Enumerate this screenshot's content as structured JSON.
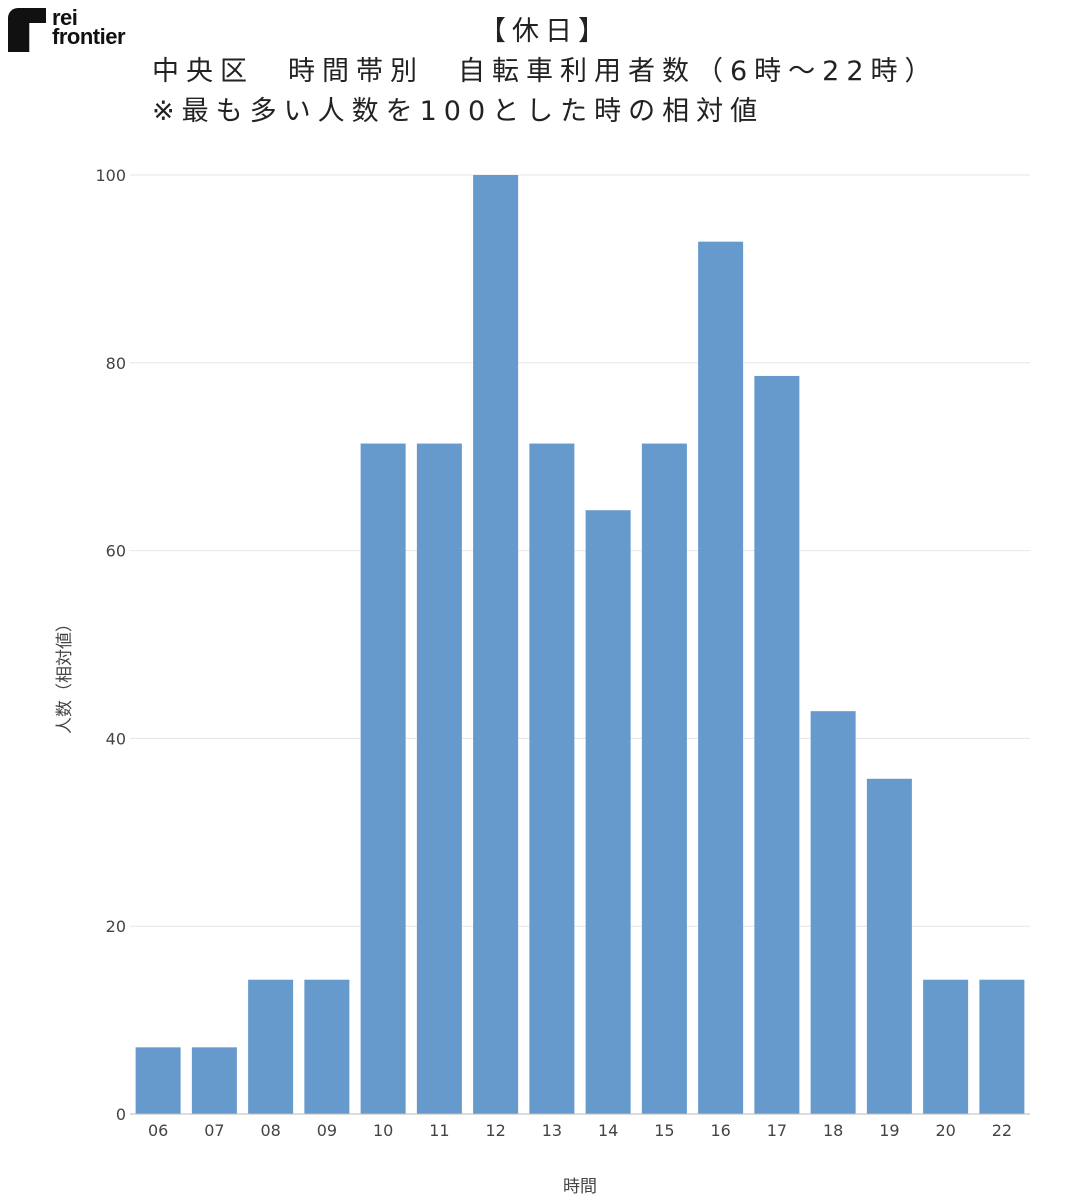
{
  "logo": {
    "line1": "rei",
    "line2": "frontier"
  },
  "title_lines": [
    "【休日】",
    "中央区　時間帯別　自転車利用者数（6時〜22時）",
    "※最も多い人数を100とした時の相対値"
  ],
  "chart_data": {
    "type": "bar",
    "title": "【休日】 中央区　時間帯別　自転車利用者数（6時〜22時） ※最も多い人数を100とした時の相対値",
    "xlabel": "時間",
    "ylabel": "人数（相対値）",
    "categories": [
      "06",
      "07",
      "08",
      "09",
      "10",
      "11",
      "12",
      "13",
      "14",
      "15",
      "16",
      "17",
      "18",
      "19",
      "20",
      "22"
    ],
    "values": [
      7.1,
      7.1,
      14.3,
      14.3,
      71.4,
      71.4,
      100,
      71.4,
      64.3,
      71.4,
      92.9,
      78.6,
      42.9,
      35.7,
      14.3,
      14.3
    ],
    "ylim": [
      0,
      100
    ],
    "yticks": [
      0,
      20,
      40,
      60,
      80,
      100
    ],
    "grid": true,
    "colors": {
      "bar": "#6699cc",
      "grid": "#e6e6e6",
      "axis": "#bbbbbb",
      "text": "#444444"
    }
  }
}
